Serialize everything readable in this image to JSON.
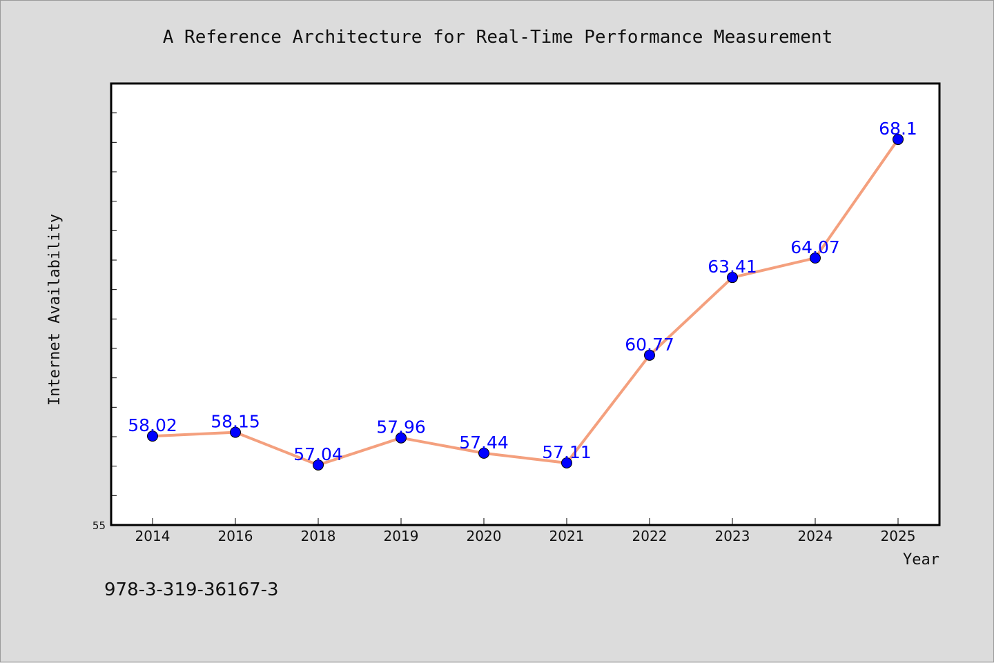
{
  "chart_data": {
    "type": "line",
    "title": "A Reference Architecture for Real-Time Performance Measurement",
    "xlabel": "Year",
    "ylabel": "Internet Availability",
    "categories": [
      "2014",
      "2016",
      "2018",
      "2019",
      "2020",
      "2021",
      "2022",
      "2023",
      "2024",
      "2025"
    ],
    "series": [
      {
        "values": [
          58.02,
          58.15,
          57.04,
          57.96,
          57.44,
          57.11,
          60.77,
          63.41,
          64.07,
          68.1
        ]
      }
    ],
    "data_labels": [
      "58.02",
      "58.15",
      "57.04",
      "57.96",
      "57.44",
      "57.11",
      "60.77",
      "63.41",
      "64.07",
      "68.1"
    ],
    "ylim": [
      55,
      70
    ],
    "y_tick_labels": [
      "55"
    ],
    "grid": false,
    "line_color": "#f4a07e",
    "marker_color": "#0000ff",
    "label_color": "#0000ff"
  },
  "footer": {
    "isbn": "978-3-319-36167-3"
  }
}
